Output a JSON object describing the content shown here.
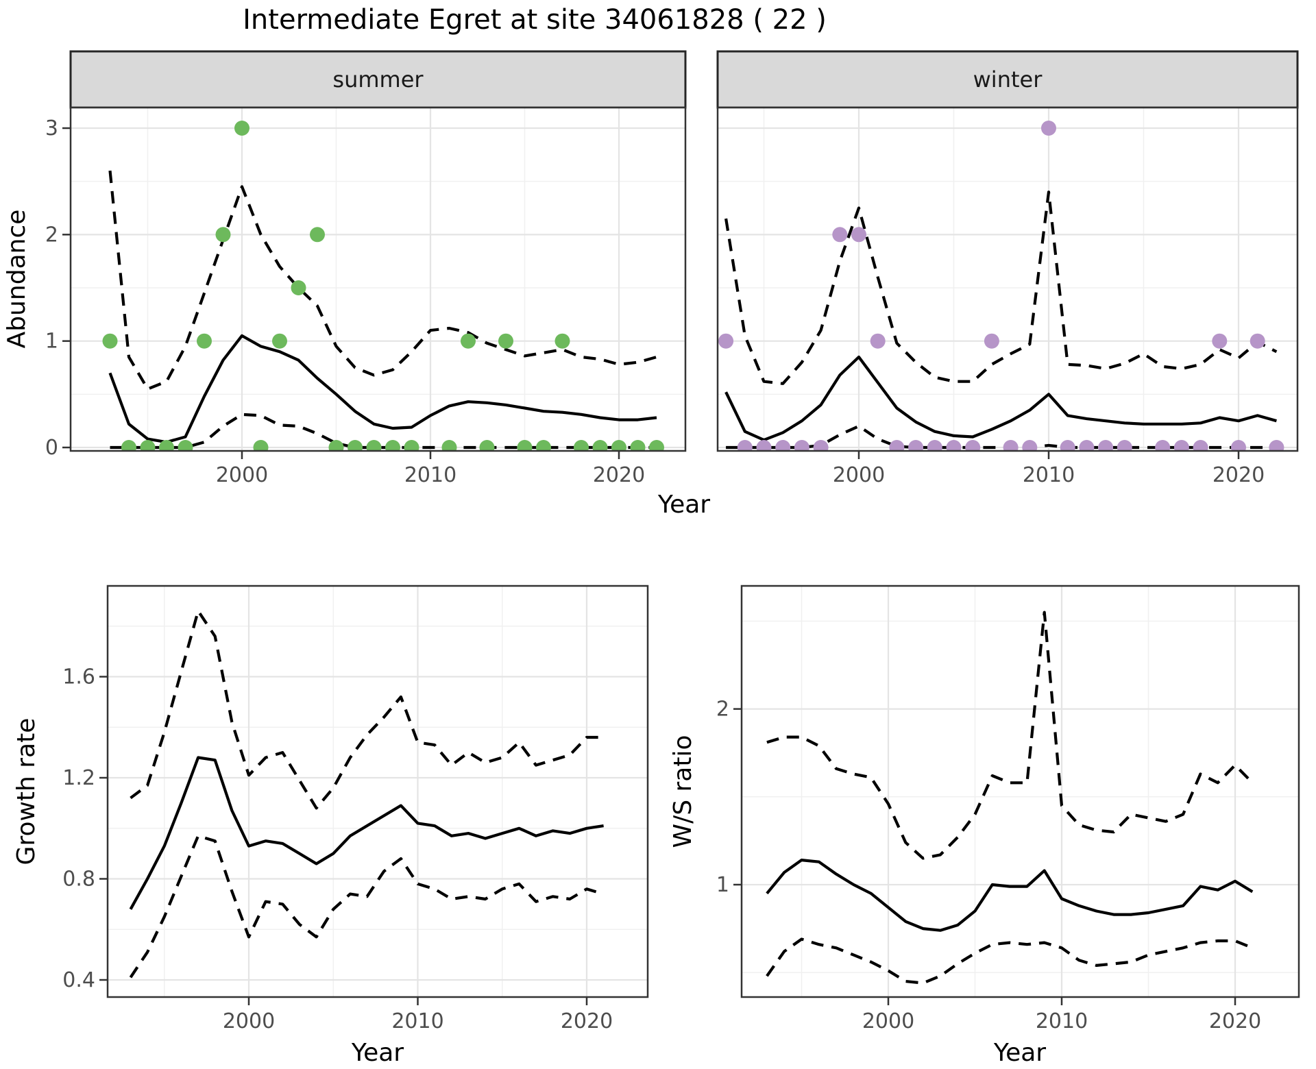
{
  "title": "Intermediate Egret at site 34061828 ( 22 )",
  "colors": {
    "summer_point": "#6db95c",
    "winter_point": "#b695c8",
    "line": "#000000",
    "strip_bg": "#d9d9d9",
    "strip_border": "#262626",
    "panel_border": "#333333",
    "grid_major": "#e4e4e4",
    "grid_minor": "#f0f0f0",
    "tick_text": "#4d4d4d",
    "axis_title": "#000000"
  },
  "axes": {
    "top": {
      "ylabel": "Abundance",
      "xlabel": "Year"
    },
    "growth": {
      "ylabel": "Growth rate",
      "xlabel": "Year"
    },
    "ws": {
      "ylabel": "W/S ratio",
      "xlabel": "Year"
    }
  },
  "chart_data": [
    {
      "id": "abundance-summer",
      "type": "line",
      "facet_label": "summer",
      "xlabel": "Year",
      "ylabel": "Abundance",
      "xlim": [
        1991,
        2023.5
      ],
      "ylim": [
        -0.03,
        3.2
      ],
      "x_ticks": [
        2000,
        2010,
        2020
      ],
      "y_ticks": [
        0,
        1,
        2,
        3
      ],
      "grid": true,
      "legend": "none",
      "series": [
        {
          "name": "observed-counts",
          "style": "points",
          "color": "#6db95c",
          "x": [
            1993,
            1994,
            1995,
            1996,
            1997,
            1998,
            1999,
            2000,
            2001,
            2002,
            2003,
            2004,
            2005,
            2006,
            2007,
            2008,
            2009,
            2011,
            2012,
            2013,
            2014,
            2015,
            2016,
            2017,
            2018,
            2019,
            2020,
            2021,
            2022
          ],
          "y": [
            1,
            0,
            0,
            0,
            0,
            1,
            2,
            3,
            0,
            1,
            1.5,
            2,
            0,
            0,
            0,
            0,
            0,
            0,
            1,
            0,
            1,
            0,
            0,
            1,
            0,
            0,
            0,
            0,
            0
          ]
        },
        {
          "name": "fitted-mean",
          "style": "solid",
          "color": "#000000",
          "x": [
            1993,
            1994,
            1995,
            1996,
            1997,
            1998,
            1999,
            2000,
            2001,
            2002,
            2003,
            2004,
            2005,
            2006,
            2007,
            2008,
            2009,
            2010,
            2011,
            2012,
            2013,
            2014,
            2015,
            2016,
            2017,
            2018,
            2019,
            2020,
            2021,
            2022
          ],
          "y": [
            0.7,
            0.22,
            0.08,
            0.05,
            0.1,
            0.48,
            0.82,
            1.05,
            0.95,
            0.9,
            0.82,
            0.65,
            0.5,
            0.34,
            0.22,
            0.18,
            0.19,
            0.3,
            0.39,
            0.43,
            0.42,
            0.4,
            0.37,
            0.34,
            0.33,
            0.31,
            0.28,
            0.26,
            0.26,
            0.28
          ]
        },
        {
          "name": "upper-95ci",
          "style": "dashed",
          "color": "#000000",
          "x": [
            1993,
            1994,
            1995,
            1996,
            1997,
            1998,
            1999,
            2000,
            2001,
            2002,
            2003,
            2004,
            2005,
            2006,
            2007,
            2008,
            2009,
            2010,
            2011,
            2012,
            2013,
            2014,
            2015,
            2016,
            2017,
            2018,
            2019,
            2020,
            2021,
            2022
          ],
          "y": [
            2.6,
            0.85,
            0.55,
            0.62,
            0.95,
            1.45,
            1.95,
            2.45,
            2.0,
            1.7,
            1.5,
            1.33,
            0.95,
            0.75,
            0.68,
            0.73,
            0.9,
            1.1,
            1.12,
            1.08,
            0.98,
            0.92,
            0.86,
            0.89,
            0.92,
            0.85,
            0.83,
            0.78,
            0.8,
            0.85
          ]
        },
        {
          "name": "lower-95ci",
          "style": "dashed",
          "color": "#000000",
          "x": [
            1993,
            1994,
            1995,
            1996,
            1997,
            1998,
            1999,
            2000,
            2001,
            2002,
            2003,
            2004,
            2005,
            2006,
            2007,
            2008,
            2009,
            2010,
            2011,
            2012,
            2013,
            2014,
            2015,
            2016,
            2017,
            2018,
            2019,
            2020,
            2021,
            2022
          ],
          "y": [
            0,
            0,
            0,
            0,
            0,
            0.05,
            0.2,
            0.31,
            0.3,
            0.21,
            0.2,
            0.13,
            0.04,
            0,
            0,
            0,
            0,
            0,
            0,
            0,
            0,
            0,
            0,
            0,
            0,
            0,
            0,
            0,
            0,
            0
          ]
        }
      ]
    },
    {
      "id": "abundance-winter",
      "type": "line",
      "facet_label": "winter",
      "xlabel": "Year",
      "ylabel": "Abundance",
      "xlim": [
        1992.5,
        2023.1
      ],
      "ylim": [
        -0.03,
        3.2
      ],
      "x_ticks": [
        2000,
        2010,
        2020
      ],
      "y_ticks": [
        0,
        1,
        2,
        3
      ],
      "grid": true,
      "legend": "none",
      "series": [
        {
          "name": "observed-counts",
          "style": "points",
          "color": "#b695c8",
          "x": [
            1993,
            1994,
            1995,
            1996,
            1997,
            1998,
            1999,
            2000,
            2001,
            2002,
            2003,
            2004,
            2005,
            2006,
            2007,
            2008,
            2009,
            2010,
            2011,
            2012,
            2013,
            2014,
            2016,
            2017,
            2018,
            2019,
            2020,
            2021,
            2022
          ],
          "y": [
            1,
            0,
            0,
            0,
            0,
            0,
            2,
            2,
            1,
            0,
            0,
            0,
            0,
            0,
            1,
            0,
            0,
            3,
            0,
            0,
            0,
            0,
            0,
            0,
            0,
            1,
            0,
            1,
            0
          ]
        },
        {
          "name": "fitted-mean",
          "style": "solid",
          "color": "#000000",
          "x": [
            1993,
            1994,
            1995,
            1996,
            1997,
            1998,
            1999,
            2000,
            2001,
            2002,
            2003,
            2004,
            2005,
            2006,
            2007,
            2008,
            2009,
            2010,
            2011,
            2012,
            2013,
            2014,
            2015,
            2016,
            2017,
            2018,
            2019,
            2020,
            2021,
            2022
          ],
          "y": [
            0.52,
            0.15,
            0.07,
            0.14,
            0.25,
            0.4,
            0.68,
            0.85,
            0.61,
            0.37,
            0.24,
            0.15,
            0.11,
            0.1,
            0.17,
            0.25,
            0.35,
            0.5,
            0.3,
            0.27,
            0.25,
            0.23,
            0.22,
            0.22,
            0.22,
            0.23,
            0.28,
            0.25,
            0.3,
            0.25
          ]
        },
        {
          "name": "upper-95ci",
          "style": "dashed",
          "color": "#000000",
          "x": [
            1993,
            1994,
            1995,
            1996,
            1997,
            1998,
            1999,
            2000,
            2001,
            2002,
            2003,
            2004,
            2005,
            2006,
            2007,
            2008,
            2009,
            2010,
            2011,
            2012,
            2013,
            2014,
            2015,
            2016,
            2017,
            2018,
            2019,
            2020,
            2021,
            2022
          ],
          "y": [
            2.15,
            1.05,
            0.62,
            0.6,
            0.8,
            1.1,
            1.75,
            2.25,
            1.6,
            0.98,
            0.8,
            0.66,
            0.62,
            0.62,
            0.78,
            0.88,
            0.97,
            2.4,
            0.78,
            0.77,
            0.74,
            0.79,
            0.88,
            0.76,
            0.74,
            0.78,
            0.92,
            0.84,
            0.99,
            0.9
          ]
        },
        {
          "name": "lower-95ci",
          "style": "dashed",
          "color": "#000000",
          "x": [
            1993,
            1994,
            1995,
            1996,
            1997,
            1998,
            1999,
            2000,
            2001,
            2002,
            2003,
            2004,
            2005,
            2006,
            2007,
            2008,
            2009,
            2010,
            2011,
            2012,
            2013,
            2014,
            2015,
            2016,
            2017,
            2018,
            2019,
            2020,
            2021,
            2022
          ],
          "y": [
            0,
            0,
            0,
            0,
            0,
            0.02,
            0.12,
            0.2,
            0.08,
            0.01,
            0,
            0,
            0,
            0,
            0,
            0,
            0,
            0.02,
            0,
            0,
            0,
            0,
            0,
            0,
            0,
            0,
            0,
            0,
            0,
            0
          ]
        }
      ]
    },
    {
      "id": "growth-rate",
      "type": "line",
      "facet_label": null,
      "xlabel": "Year",
      "ylabel": "Growth rate",
      "xlim": [
        1991.6,
        2023.6
      ],
      "ylim": [
        0.33,
        1.96
      ],
      "x_ticks": [
        2000,
        2010,
        2020
      ],
      "y_ticks": [
        0.4,
        0.8,
        1.2,
        1.6
      ],
      "grid": true,
      "legend": "none",
      "series": [
        {
          "name": "fitted-mean",
          "style": "solid",
          "color": "#000000",
          "x": [
            1993,
            1994,
            1995,
            1996,
            1997,
            1998,
            1999,
            2000,
            2001,
            2002,
            2003,
            2004,
            2005,
            2006,
            2007,
            2008,
            2009,
            2010,
            2011,
            2012,
            2013,
            2014,
            2015,
            2016,
            2017,
            2018,
            2019,
            2020,
            2021
          ],
          "y": [
            0.68,
            0.8,
            0.93,
            1.1,
            1.28,
            1.27,
            1.07,
            0.93,
            0.95,
            0.94,
            0.9,
            0.86,
            0.9,
            0.97,
            1.01,
            1.05,
            1.09,
            1.02,
            1.01,
            0.97,
            0.98,
            0.96,
            0.98,
            1.0,
            0.97,
            0.99,
            0.98,
            1.0,
            1.01
          ]
        },
        {
          "name": "upper-95ci",
          "style": "dashed",
          "color": "#000000",
          "x": [
            1993,
            1994,
            1995,
            1996,
            1997,
            1998,
            1999,
            2000,
            2001,
            2002,
            2003,
            2004,
            2005,
            2006,
            2007,
            2008,
            2009,
            2010,
            2011,
            2012,
            2013,
            2014,
            2015,
            2016,
            2017,
            2018,
            2019,
            2020,
            2021
          ],
          "y": [
            1.12,
            1.17,
            1.38,
            1.62,
            1.86,
            1.76,
            1.42,
            1.21,
            1.28,
            1.3,
            1.19,
            1.08,
            1.16,
            1.28,
            1.37,
            1.44,
            1.52,
            1.34,
            1.33,
            1.25,
            1.3,
            1.26,
            1.28,
            1.34,
            1.25,
            1.27,
            1.29,
            1.36,
            1.36
          ]
        },
        {
          "name": "lower-95ci",
          "style": "dashed",
          "color": "#000000",
          "x": [
            1993,
            1994,
            1995,
            1996,
            1997,
            1998,
            1999,
            2000,
            2001,
            2002,
            2003,
            2004,
            2005,
            2006,
            2007,
            2008,
            2009,
            2010,
            2011,
            2012,
            2013,
            2014,
            2015,
            2016,
            2017,
            2018,
            2019,
            2020,
            2021
          ],
          "y": [
            0.41,
            0.51,
            0.65,
            0.81,
            0.97,
            0.95,
            0.75,
            0.57,
            0.71,
            0.7,
            0.62,
            0.57,
            0.68,
            0.74,
            0.73,
            0.83,
            0.88,
            0.78,
            0.76,
            0.72,
            0.73,
            0.72,
            0.76,
            0.78,
            0.71,
            0.73,
            0.72,
            0.76,
            0.74
          ]
        }
      ]
    },
    {
      "id": "ws-ratio",
      "type": "line",
      "facet_label": null,
      "xlabel": "Year",
      "ylabel": "W/S ratio",
      "xlim": [
        1991.5,
        2023.7
      ],
      "ylim": [
        0.36,
        2.7
      ],
      "x_ticks": [
        2000,
        2010,
        2020
      ],
      "y_ticks": [
        1,
        2
      ],
      "grid": true,
      "legend": "none",
      "series": [
        {
          "name": "fitted-mean",
          "style": "solid",
          "color": "#000000",
          "x": [
            1993,
            1994,
            1995,
            1996,
            1997,
            1998,
            1999,
            2000,
            2001,
            2002,
            2003,
            2004,
            2005,
            2006,
            2007,
            2008,
            2009,
            2010,
            2011,
            2012,
            2013,
            2014,
            2015,
            2016,
            2017,
            2018,
            2019,
            2020,
            2021
          ],
          "y": [
            0.95,
            1.07,
            1.14,
            1.13,
            1.06,
            1.0,
            0.95,
            0.87,
            0.79,
            0.75,
            0.74,
            0.77,
            0.85,
            1.0,
            0.99,
            0.99,
            1.08,
            0.92,
            0.88,
            0.85,
            0.83,
            0.83,
            0.84,
            0.86,
            0.88,
            0.99,
            0.97,
            1.02,
            0.96
          ]
        },
        {
          "name": "upper-95ci",
          "style": "dashed",
          "color": "#000000",
          "x": [
            1993,
            1994,
            1995,
            1996,
            1997,
            1998,
            1999,
            2000,
            2001,
            2002,
            2003,
            2004,
            2005,
            2006,
            2007,
            2008,
            2009,
            2010,
            2011,
            2012,
            2013,
            2014,
            2015,
            2016,
            2017,
            2018,
            2019,
            2020,
            2021
          ],
          "y": [
            1.81,
            1.84,
            1.84,
            1.79,
            1.66,
            1.63,
            1.61,
            1.46,
            1.24,
            1.15,
            1.17,
            1.27,
            1.4,
            1.62,
            1.58,
            1.58,
            2.55,
            1.45,
            1.34,
            1.31,
            1.3,
            1.4,
            1.38,
            1.36,
            1.4,
            1.63,
            1.58,
            1.68,
            1.58
          ]
        },
        {
          "name": "lower-95ci",
          "style": "dashed",
          "color": "#000000",
          "x": [
            1993,
            1994,
            1995,
            1996,
            1997,
            1998,
            1999,
            2000,
            2001,
            2002,
            2003,
            2004,
            2005,
            2006,
            2007,
            2008,
            2009,
            2010,
            2011,
            2012,
            2013,
            2014,
            2015,
            2016,
            2017,
            2018,
            2019,
            2020,
            2021
          ],
          "y": [
            0.48,
            0.62,
            0.69,
            0.66,
            0.64,
            0.6,
            0.56,
            0.51,
            0.45,
            0.44,
            0.48,
            0.55,
            0.61,
            0.66,
            0.67,
            0.66,
            0.67,
            0.64,
            0.57,
            0.54,
            0.55,
            0.56,
            0.6,
            0.62,
            0.64,
            0.67,
            0.68,
            0.68,
            0.64
          ]
        }
      ]
    }
  ]
}
